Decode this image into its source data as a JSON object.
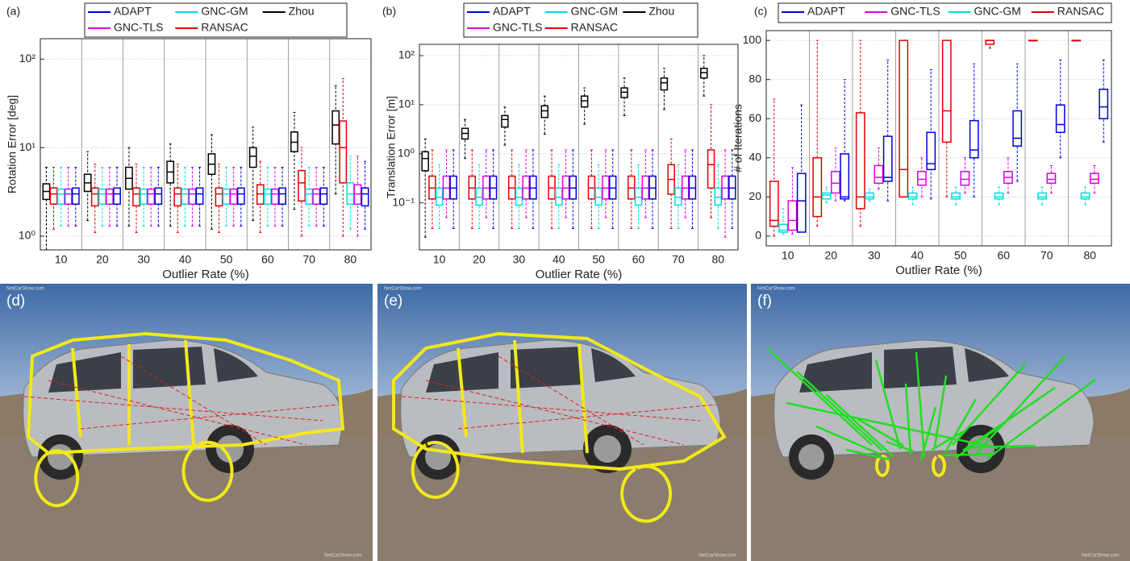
{
  "chart_data": [
    {
      "type": "box",
      "panel": "(a)",
      "ylabel": "Rotation Error [deg]",
      "xlabel": "Outlier Rate (%)",
      "categories": [
        10,
        20,
        30,
        40,
        50,
        60,
        70,
        80
      ],
      "log": true,
      "grid": true,
      "legend": "top",
      "ylim": [
        0.7,
        170
      ],
      "yticks": [
        {
          "value": 1,
          "label": "10⁰"
        },
        {
          "value": 10,
          "label": "10¹"
        },
        {
          "value": 100,
          "label": "10²"
        }
      ],
      "series": [
        {
          "name": "Zhou",
          "color": "#000000",
          "values": [
            [
              0.7,
              2.6,
              3.2,
              3.9,
              6
            ],
            [
              1.5,
              3.2,
              4,
              5,
              9
            ],
            [
              1.3,
              3.4,
              4.5,
              6,
              10
            ],
            [
              1.3,
              4,
              5.3,
              7,
              11
            ],
            [
              1.2,
              5,
              6.5,
              8.5,
              14
            ],
            [
              1.5,
              6,
              8,
              10,
              17
            ],
            [
              2,
              9,
              11.5,
              15,
              25
            ],
            [
              3,
              11,
              18,
              26,
              50
            ]
          ]
        },
        {
          "name": "RANSAC",
          "color": "#e00000",
          "values": [
            [
              1.2,
              2.3,
              3,
              3.5,
              6
            ],
            [
              1.1,
              2.2,
              3,
              3.5,
              6.5
            ],
            [
              1.1,
              2.2,
              3,
              3.5,
              6.5
            ],
            [
              1.1,
              2.2,
              3,
              3.5,
              6.5
            ],
            [
              1.1,
              2.2,
              3,
              3.5,
              6.5
            ],
            [
              1.1,
              2.3,
              3,
              3.8,
              7
            ],
            [
              1,
              2.5,
              4,
              5.5,
              10
            ],
            [
              1,
              4,
              10,
              20,
              60
            ]
          ]
        },
        {
          "name": "GNC-GM",
          "color": "#00dede",
          "values": [
            [
              1.3,
              2.3,
              3,
              3.4,
              6
            ],
            [
              1.3,
              2.3,
              3,
              3.4,
              6
            ],
            [
              1.3,
              2.3,
              3,
              3.4,
              6
            ],
            [
              1.3,
              2.3,
              3,
              3.4,
              6
            ],
            [
              1.3,
              2.3,
              3,
              3.4,
              6
            ],
            [
              1.3,
              2.3,
              3,
              3.4,
              6
            ],
            [
              1.3,
              2.3,
              3,
              3.4,
              6
            ],
            [
              1.2,
              2.3,
              3,
              4,
              8
            ]
          ]
        },
        {
          "name": "GNC-TLS",
          "color": "#e000e0",
          "values": [
            [
              1.3,
              2.3,
              3,
              3.4,
              6
            ],
            [
              1.3,
              2.3,
              3,
              3.4,
              6
            ],
            [
              1.3,
              2.3,
              3,
              3.4,
              6
            ],
            [
              1.3,
              2.3,
              3,
              3.4,
              6
            ],
            [
              1.3,
              2.3,
              3,
              3.4,
              6
            ],
            [
              1.3,
              2.3,
              3,
              3.4,
              6
            ],
            [
              1.3,
              2.3,
              3,
              3.4,
              6
            ],
            [
              1,
              2.3,
              3,
              3.8,
              8
            ]
          ]
        },
        {
          "name": "ADAPT",
          "color": "#0000e0",
          "values": [
            [
              1.3,
              2.3,
              3,
              3.5,
              6
            ],
            [
              1.3,
              2.3,
              3,
              3.5,
              6
            ],
            [
              1.3,
              2.3,
              3,
              3.5,
              6
            ],
            [
              1.3,
              2.3,
              3,
              3.5,
              6
            ],
            [
              1.3,
              2.3,
              3,
              3.5,
              6
            ],
            [
              1.3,
              2.3,
              3,
              3.5,
              6
            ],
            [
              1.3,
              2.3,
              3,
              3.5,
              6
            ],
            [
              1.2,
              2.2,
              3,
              3.5,
              7
            ]
          ]
        }
      ]
    },
    {
      "type": "box",
      "panel": "(b)",
      "ylabel": "Translation Error [m]",
      "xlabel": "Outlier Rate (%)",
      "categories": [
        10,
        20,
        30,
        40,
        50,
        60,
        70,
        80
      ],
      "log": true,
      "grid": true,
      "legend": "top",
      "ylim": [
        0.011,
        170
      ],
      "yticks": [
        {
          "value": 0.1,
          "label": "10⁻¹"
        },
        {
          "value": 1,
          "label": "10⁰"
        },
        {
          "value": 10,
          "label": "10¹"
        },
        {
          "value": 100,
          "label": "10²"
        }
      ],
      "series": [
        {
          "name": "Zhou",
          "color": "#000000",
          "values": [
            [
              0.02,
              0.45,
              0.8,
              1.1,
              2
            ],
            [
              0.8,
              2,
              2.6,
              3.3,
              5
            ],
            [
              1.5,
              3.5,
              5,
              6,
              9
            ],
            [
              2.5,
              5.5,
              7.5,
              9.5,
              15
            ],
            [
              4,
              9,
              12,
              15,
              22
            ],
            [
              6,
              14,
              18,
              22,
              35
            ],
            [
              8,
              20,
              28,
              35,
              55
            ],
            [
              15,
              35,
              45,
              55,
              100
            ]
          ]
        },
        {
          "name": "RANSAC",
          "color": "#e00000",
          "values": [
            [
              0.03,
              0.12,
              0.2,
              0.35,
              1.2
            ],
            [
              0.03,
              0.12,
              0.2,
              0.35,
              1.2
            ],
            [
              0.03,
              0.12,
              0.2,
              0.35,
              1.2
            ],
            [
              0.03,
              0.12,
              0.2,
              0.35,
              1.2
            ],
            [
              0.03,
              0.12,
              0.2,
              0.35,
              1.2
            ],
            [
              0.03,
              0.12,
              0.2,
              0.35,
              1.2
            ],
            [
              0.03,
              0.15,
              0.3,
              0.6,
              2
            ],
            [
              0.05,
              0.2,
              0.6,
              1.2,
              10
            ]
          ]
        },
        {
          "name": "GNC-GM",
          "color": "#00dede",
          "values": [
            [
              0.03,
              0.09,
              0.13,
              0.2,
              0.6
            ],
            [
              0.03,
              0.09,
              0.13,
              0.2,
              0.6
            ],
            [
              0.03,
              0.09,
              0.13,
              0.2,
              0.6
            ],
            [
              0.03,
              0.09,
              0.13,
              0.2,
              0.6
            ],
            [
              0.03,
              0.09,
              0.13,
              0.2,
              0.6
            ],
            [
              0.03,
              0.09,
              0.13,
              0.2,
              0.6
            ],
            [
              0.03,
              0.09,
              0.13,
              0.2,
              0.6
            ],
            [
              0.03,
              0.09,
              0.13,
              0.2,
              0.6
            ]
          ]
        },
        {
          "name": "GNC-TLS",
          "color": "#e000e0",
          "values": [
            [
              0.05,
              0.12,
              0.2,
              0.35,
              1.2
            ],
            [
              0.05,
              0.12,
              0.2,
              0.35,
              1.2
            ],
            [
              0.05,
              0.12,
              0.2,
              0.35,
              1.2
            ],
            [
              0.05,
              0.12,
              0.2,
              0.35,
              1.2
            ],
            [
              0.05,
              0.12,
              0.2,
              0.35,
              1.2
            ],
            [
              0.05,
              0.12,
              0.2,
              0.35,
              1.2
            ],
            [
              0.05,
              0.12,
              0.2,
              0.35,
              1.2
            ],
            [
              0.02,
              0.12,
              0.2,
              0.35,
              1.2
            ]
          ]
        },
        {
          "name": "ADAPT",
          "color": "#0000e0",
          "values": [
            [
              0.03,
              0.12,
              0.2,
              0.35,
              1.2
            ],
            [
              0.03,
              0.12,
              0.2,
              0.35,
              1.2
            ],
            [
              0.03,
              0.12,
              0.2,
              0.35,
              1.2
            ],
            [
              0.03,
              0.12,
              0.2,
              0.35,
              1.2
            ],
            [
              0.03,
              0.12,
              0.2,
              0.35,
              1.2
            ],
            [
              0.03,
              0.12,
              0.2,
              0.35,
              1.2
            ],
            [
              0.03,
              0.12,
              0.2,
              0.35,
              1.2
            ],
            [
              0.03,
              0.12,
              0.2,
              0.35,
              1.2
            ]
          ]
        }
      ]
    },
    {
      "type": "box",
      "panel": "(c)",
      "ylabel": "# of Iterations",
      "xlabel": "Outlier Rate (%)",
      "categories": [
        10,
        20,
        30,
        40,
        50,
        60,
        70,
        80
      ],
      "log": false,
      "grid": true,
      "legend": "top",
      "ylim": [
        -5,
        105
      ],
      "yticks": [
        0,
        20,
        40,
        60,
        80,
        100
      ],
      "series": [
        {
          "name": "RANSAC",
          "color": "#e00000",
          "values": [
            [
              0,
              5,
              8,
              28,
              70
            ],
            [
              5,
              10,
              20,
              40,
              100
            ],
            [
              5,
              14,
              20,
              63,
              100
            ],
            [
              20,
              20,
              34,
              100,
              100
            ],
            [
              20,
              48,
              64,
              100,
              100
            ],
            [
              96,
              98,
              100,
              100,
              100
            ],
            [
              100,
              100,
              100,
              100,
              100
            ],
            [
              100,
              100,
              100,
              100,
              100
            ]
          ]
        },
        {
          "name": "GNC-GM",
          "color": "#00dede",
          "values": [
            [
              1,
              2,
              3,
              6,
              14
            ],
            [
              17,
              19,
              21,
              22,
              25
            ],
            [
              18,
              19,
              20,
              22,
              24
            ],
            [
              16,
              19,
              20,
              22,
              25
            ],
            [
              16,
              19,
              20,
              22,
              25
            ],
            [
              16,
              19,
              20,
              22,
              25
            ],
            [
              16,
              19,
              20,
              22,
              25
            ],
            [
              16,
              19,
              20,
              22,
              25
            ]
          ]
        },
        {
          "name": "GNC-TLS",
          "color": "#e000e0",
          "values": [
            [
              1,
              3,
              8,
              18,
              35
            ],
            [
              18,
              22,
              27,
              33,
              45
            ],
            [
              24,
              27,
              30,
              36,
              45
            ],
            [
              20,
              26,
              29,
              33,
              40
            ],
            [
              22,
              26,
              29,
              33,
              40
            ],
            [
              22,
              27,
              30,
              33,
              40
            ],
            [
              22,
              27,
              29,
              32,
              36
            ],
            [
              22,
              27,
              29,
              32,
              36
            ]
          ]
        },
        {
          "name": "ADAPT",
          "color": "#0000e0",
          "values": [
            [
              2,
              2,
              18,
              32,
              67
            ],
            [
              18,
              19,
              20,
              42,
              80
            ],
            [
              18,
              28,
              30,
              51,
              90
            ],
            [
              19,
              34,
              37,
              53,
              85
            ],
            [
              20,
              40,
              44,
              59,
              88
            ],
            [
              28,
              46,
              50,
              64,
              88
            ],
            [
              40,
              53,
              57,
              67,
              90
            ],
            [
              48,
              60,
              66,
              75,
              90
            ]
          ]
        }
      ]
    }
  ],
  "photos": [
    {
      "label": "(d)"
    },
    {
      "label": "(e)"
    },
    {
      "label": "(f)"
    }
  ],
  "watermark": "NetCarShow.com"
}
